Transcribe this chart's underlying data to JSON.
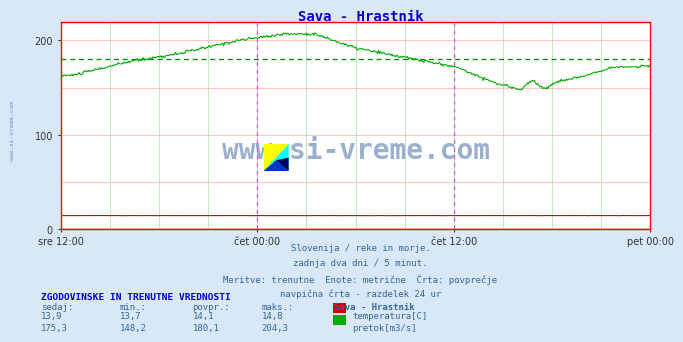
{
  "title": "Sava - Hrastnik",
  "title_color": "#0000cc",
  "bg_color": "#d8e8f8",
  "plot_bg_color": "#ffffff",
  "grid_color_h": "#ffaaaa",
  "grid_color_v": "#aaddaa",
  "axis_color": "#ff0000",
  "flow_color": "#00aa00",
  "temp_color": "#cc0000",
  "avg_line_color": "#008800",
  "xtick_labels": [
    "sre 12:00",
    "čet 00:00",
    "čet 12:00",
    "pet 00:00"
  ],
  "ylim": [
    0,
    220
  ],
  "yticks": [
    0,
    100,
    200
  ],
  "vline_color": "#ff44ff",
  "avg_value": 180.1,
  "caption_lines": [
    "Slovenija / reke in morje.",
    "zadnja dva dni / 5 minut.",
    "Meritve: trenutne  Enote: metrične  Črta: povprečje",
    "navpična črta - razdelek 24 ur"
  ],
  "table_header": "ZGODOVINSKE IN TRENUTNE VREDNOSTI",
  "col_headers": [
    "sedaj:",
    "min.:",
    "povpr.:",
    "maks.:",
    "Sava - Hrastnik"
  ],
  "row_temp": [
    "13,9",
    "13,7",
    "14,1",
    "14,8",
    "temperatura[C]"
  ],
  "row_flow": [
    "175,3",
    "148,2",
    "180,1",
    "204,3",
    "pretok[m3/s]"
  ],
  "watermark": "www.si-vreme.com",
  "watermark_color": "#4a6fa5",
  "sidebar_text": "www.si-vreme.com",
  "sidebar_color": "#7090b0",
  "text_color": "#336699"
}
